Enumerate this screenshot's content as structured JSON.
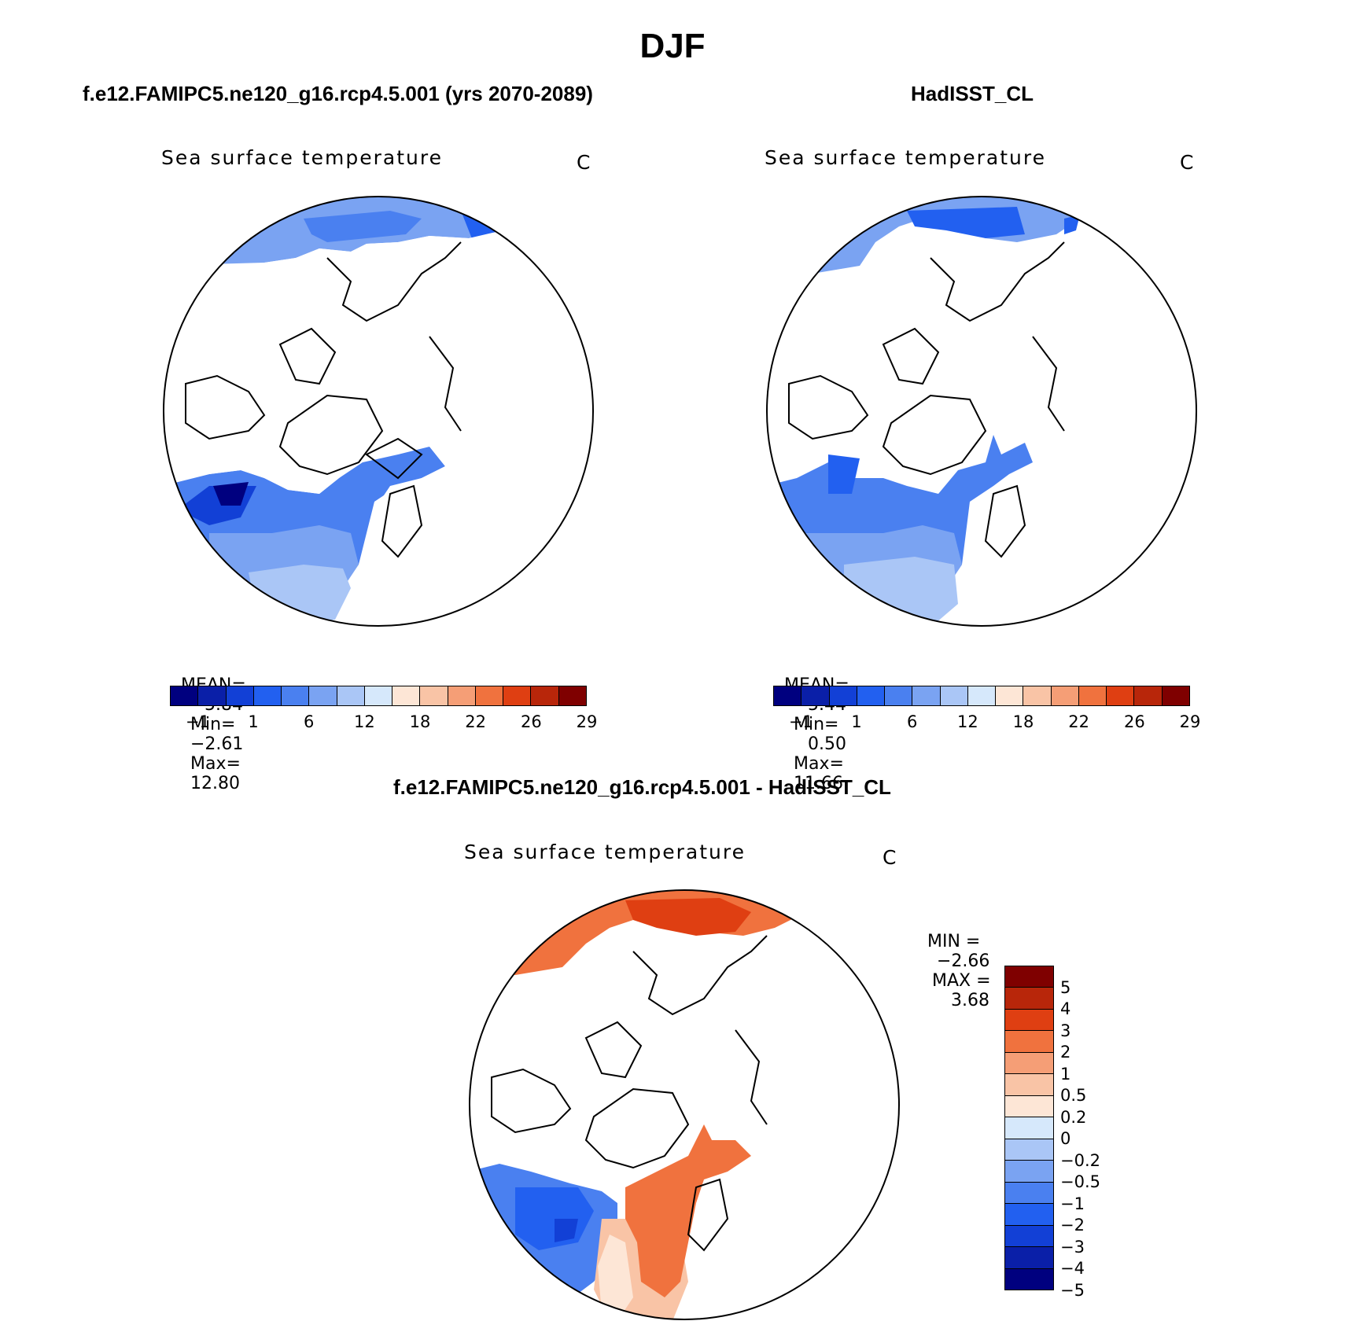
{
  "figure_title": "DJF",
  "panels": [
    {
      "title": "f.e12.FAMIPC5.ne120_g16.rcp4.5.001 (yrs 2070-2089)",
      "variable": "Sea surface temperature",
      "units": "C",
      "stats": {
        "mean_label": "MEAN=",
        "mean": "5.84",
        "min_label": "Min=",
        "min": "−2.61",
        "max_label": "Max=",
        "max": "12.80"
      }
    },
    {
      "title": "HadISST_CL",
      "variable": "Sea surface temperature",
      "units": "C",
      "stats": {
        "mean_label": "MEAN=",
        "mean": "5.44",
        "min_label": "Min=",
        "min": "0.50",
        "max_label": "Max=",
        "max": "11.66"
      }
    },
    {
      "title": "f.e12.FAMIPC5.ne120_g16.rcp4.5.001 - HadISST_CL",
      "variable": "Sea surface temperature",
      "units": "C",
      "stats": {
        "min_label": "MIN =",
        "min": "−2.66",
        "max_label": "MAX =",
        "max": "3.68"
      }
    }
  ],
  "colorbar_abs": {
    "colors": [
      "#00007f",
      "#0a1fa8",
      "#1240d6",
      "#2260f0",
      "#4a80f0",
      "#7aa3f2",
      "#aac6f6",
      "#d6e8fb",
      "#fde6d6",
      "#f9c4a6",
      "#f59e76",
      "#f0723e",
      "#df3f12",
      "#b8260a",
      "#7f0000"
    ],
    "labels": [
      "−1",
      "1",
      "6",
      "12",
      "18",
      "22",
      "26",
      "29"
    ]
  },
  "colorbar_diff": {
    "colors": [
      "#7f0000",
      "#b8260a",
      "#df3f12",
      "#f0723e",
      "#f59e76",
      "#f9c4a6",
      "#fde6d6",
      "#d6e8fb",
      "#aac6f6",
      "#7aa3f2",
      "#4a80f0",
      "#2260f0",
      "#1240d6",
      "#0a1fa8",
      "#00007f"
    ],
    "labels": [
      "5",
      "4",
      "3",
      "2",
      "1",
      "0.5",
      "0.2",
      "0",
      "−0.2",
      "−0.5",
      "−1",
      "−2",
      "−3",
      "−4",
      "−5"
    ]
  }
}
